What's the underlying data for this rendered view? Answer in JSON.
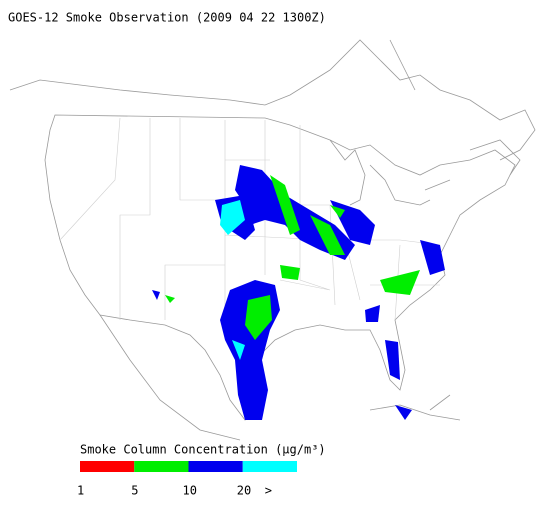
{
  "header": {
    "title": "GOES-12 Smoke Observation (2009 04 22  1300Z)"
  },
  "legend": {
    "title": "Smoke Column Concentration (μg/m³)",
    "colors": [
      "#ff0000",
      "#00ee00",
      "#0000ee",
      "#00ffff"
    ],
    "labels": [
      "1",
      "5",
      "10",
      "20",
      ">"
    ]
  }
}
